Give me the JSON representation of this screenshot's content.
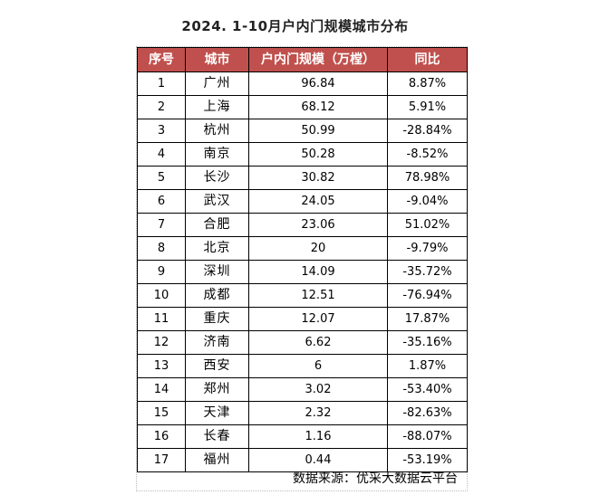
{
  "title": "2024. 1-10月户内门规模城市分布",
  "table": {
    "headers": [
      "序号",
      "城市",
      "户内门规模（万樘）",
      "同比"
    ],
    "rows": [
      {
        "rank": "1",
        "city": "广州",
        "scale": "96.84",
        "yoy": "8.87%"
      },
      {
        "rank": "2",
        "city": "上海",
        "scale": "68.12",
        "yoy": "5.91%"
      },
      {
        "rank": "3",
        "city": "杭州",
        "scale": "50.99",
        "yoy": "-28.84%"
      },
      {
        "rank": "4",
        "city": "南京",
        "scale": "50.28",
        "yoy": "-8.52%"
      },
      {
        "rank": "5",
        "city": "长沙",
        "scale": "30.82",
        "yoy": "78.98%"
      },
      {
        "rank": "6",
        "city": "武汉",
        "scale": "24.05",
        "yoy": "-9.04%"
      },
      {
        "rank": "7",
        "city": "合肥",
        "scale": "23.06",
        "yoy": "51.02%"
      },
      {
        "rank": "8",
        "city": "北京",
        "scale": "20",
        "yoy": "-9.79%"
      },
      {
        "rank": "9",
        "city": "深圳",
        "scale": "14.09",
        "yoy": "-35.72%"
      },
      {
        "rank": "10",
        "city": "成都",
        "scale": "12.51",
        "yoy": "-76.94%"
      },
      {
        "rank": "11",
        "city": "重庆",
        "scale": "12.07",
        "yoy": "17.87%"
      },
      {
        "rank": "12",
        "city": "济南",
        "scale": "6.62",
        "yoy": "-35.16%"
      },
      {
        "rank": "13",
        "city": "西安",
        "scale": "6",
        "yoy": "1.87%"
      },
      {
        "rank": "14",
        "city": "郑州",
        "scale": "3.02",
        "yoy": "-53.40%"
      },
      {
        "rank": "15",
        "city": "天津",
        "scale": "2.32",
        "yoy": "-82.63%"
      },
      {
        "rank": "16",
        "city": "长春",
        "scale": "1.16",
        "yoy": "-88.07%"
      },
      {
        "rank": "17",
        "city": "福州",
        "scale": "0.44",
        "yoy": "-53.19%"
      }
    ]
  },
  "source": "数据来源：优采大数据云平台",
  "colors": {
    "header_bg": "#c0504d",
    "header_text": "#ffffff"
  }
}
